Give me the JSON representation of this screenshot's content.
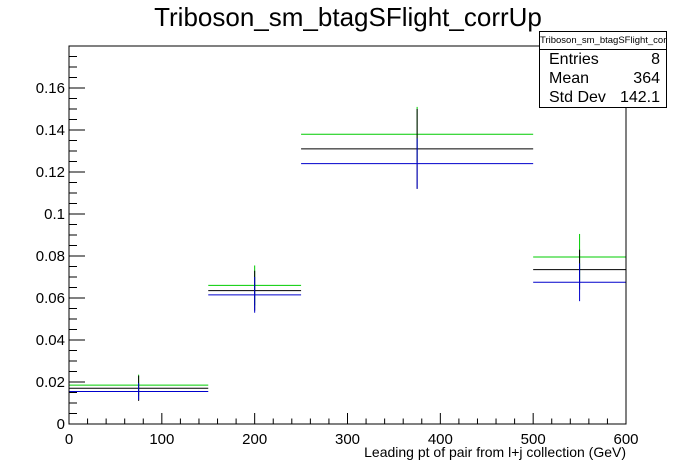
{
  "title": "Triboson_sm_btagSFlight_corrUp",
  "stats": {
    "name": "Triboson_sm_btagSFlight_corrUp",
    "entries_label": "Entries",
    "entries_value": "8",
    "mean_label": "Mean",
    "mean_value": "364",
    "stddev_label": "Std Dev",
    "stddev_value": "142.1"
  },
  "chart_data": {
    "type": "histogram",
    "title": "Triboson_sm_btagSFlight_corrUp",
    "xlabel": "Leading pt of pair from l+j collection (GeV)",
    "ylabel": "",
    "xlim": [
      0,
      600
    ],
    "ylim": [
      0,
      0.18
    ],
    "x_ticks": [
      0,
      100,
      200,
      300,
      400,
      500,
      600
    ],
    "y_ticks": [
      0,
      0.02,
      0.04,
      0.06,
      0.08,
      0.1,
      0.12,
      0.14,
      0.16
    ],
    "y_tick_labels": [
      "0",
      "0.02",
      "0.04",
      "0.06",
      "0.08",
      "0.1",
      "0.12",
      "0.14",
      "0.16"
    ],
    "bins": [
      {
        "low": 0,
        "high": 150,
        "center": 75
      },
      {
        "low": 150,
        "high": 250,
        "center": 200
      },
      {
        "low": 250,
        "high": 500,
        "center": 375
      },
      {
        "low": 500,
        "high": 600,
        "center": 550
      }
    ],
    "series": [
      {
        "color": "#00cc00",
        "values": [
          0.0185,
          0.066,
          0.138,
          0.0795
        ],
        "errors": [
          0.005,
          0.0095,
          0.013,
          0.011
        ]
      },
      {
        "color": "#000000",
        "values": [
          0.017,
          0.0635,
          0.131,
          0.0735
        ],
        "errors": [
          0.006,
          0.0095,
          0.019,
          0.0095
        ]
      },
      {
        "color": "#0000cc",
        "values": [
          0.0155,
          0.0615,
          0.124,
          0.0675
        ],
        "errors": [
          0.004,
          0.0085,
          0.012,
          0.009
        ]
      }
    ]
  }
}
